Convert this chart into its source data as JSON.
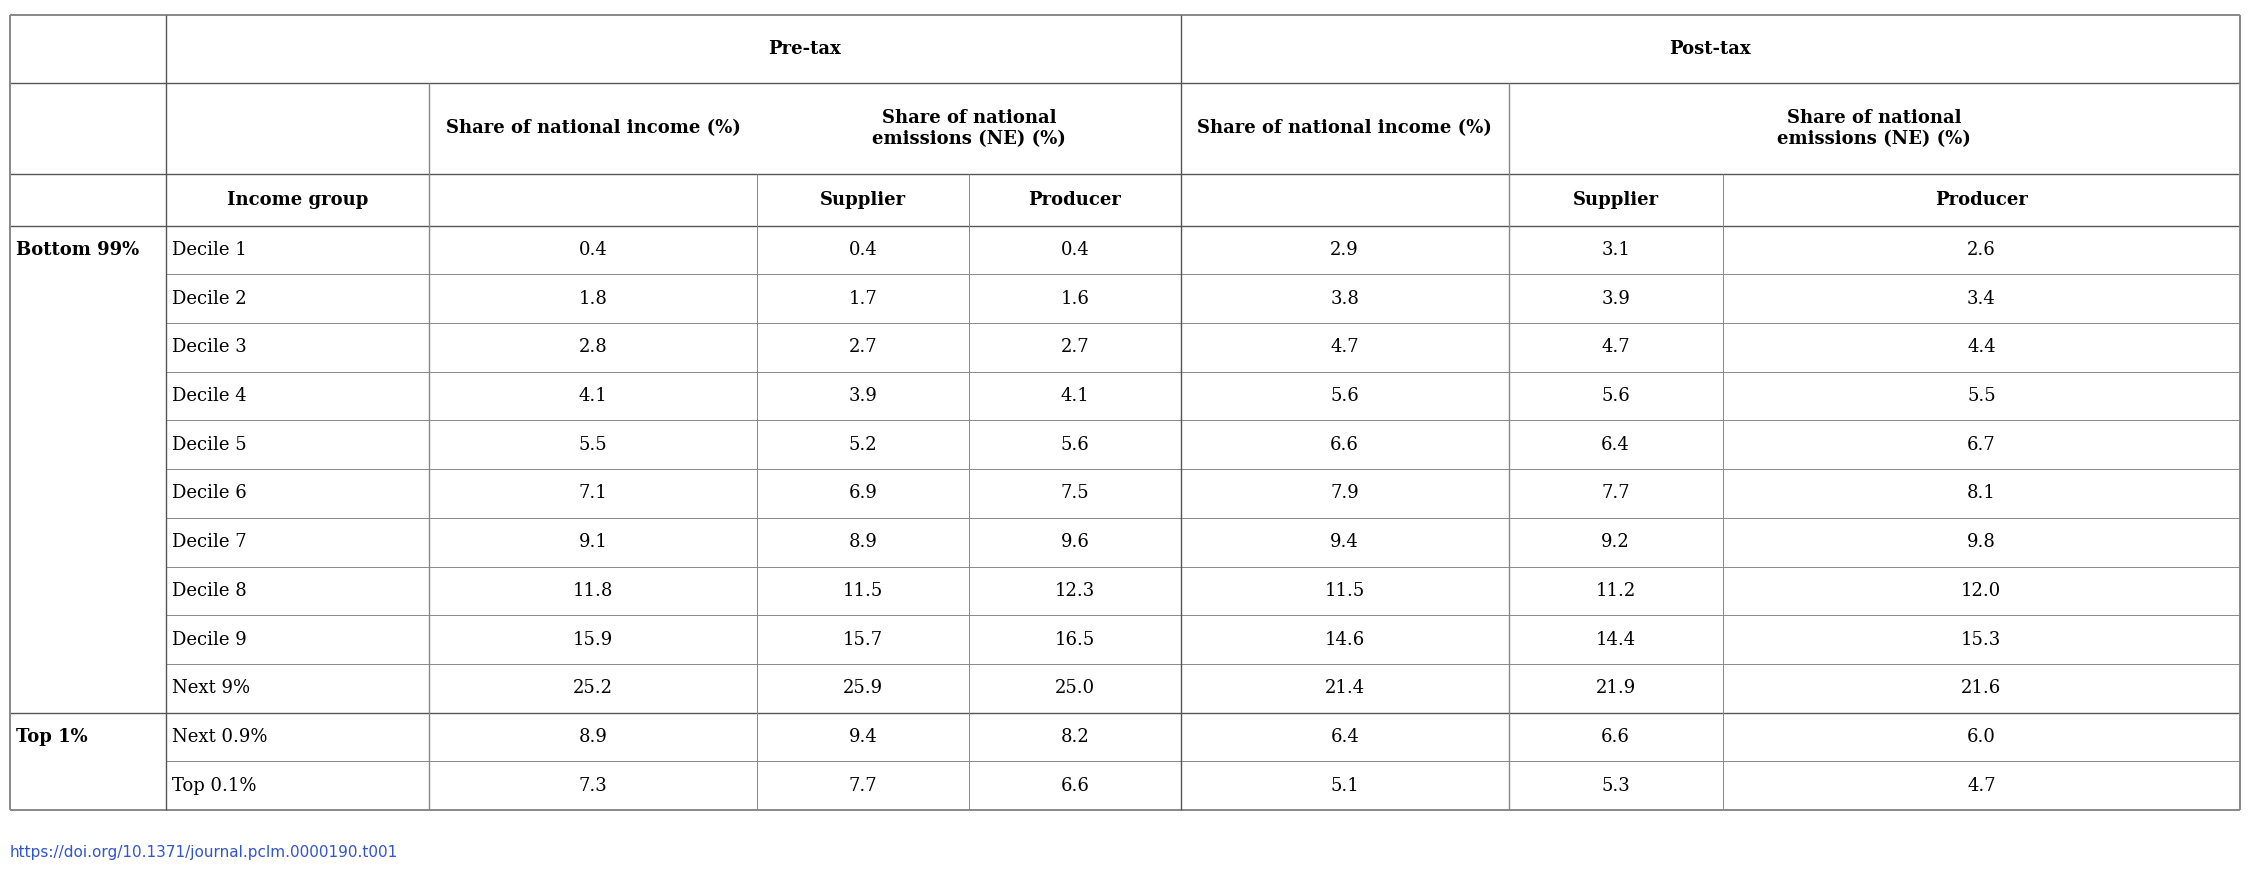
{
  "url": "https://doi.org/10.1371/journal.pclm.0000190.t001",
  "rows": [
    [
      "Bottom 99%",
      "Decile 1",
      "0.4",
      "0.4",
      "0.4",
      "2.9",
      "3.1",
      "2.6"
    ],
    [
      "",
      "Decile 2",
      "1.8",
      "1.7",
      "1.6",
      "3.8",
      "3.9",
      "3.4"
    ],
    [
      "",
      "Decile 3",
      "2.8",
      "2.7",
      "2.7",
      "4.7",
      "4.7",
      "4.4"
    ],
    [
      "",
      "Decile 4",
      "4.1",
      "3.9",
      "4.1",
      "5.6",
      "5.6",
      "5.5"
    ],
    [
      "",
      "Decile 5",
      "5.5",
      "5.2",
      "5.6",
      "6.6",
      "6.4",
      "6.7"
    ],
    [
      "",
      "Decile 6",
      "7.1",
      "6.9",
      "7.5",
      "7.9",
      "7.7",
      "8.1"
    ],
    [
      "",
      "Decile 7",
      "9.1",
      "8.9",
      "9.6",
      "9.4",
      "9.2",
      "9.8"
    ],
    [
      "",
      "Decile 8",
      "11.8",
      "11.5",
      "12.3",
      "11.5",
      "11.2",
      "12.0"
    ],
    [
      "",
      "Decile 9",
      "15.9",
      "15.7",
      "16.5",
      "14.6",
      "14.4",
      "15.3"
    ],
    [
      "",
      "Next 9%",
      "25.2",
      "25.9",
      "25.0",
      "21.4",
      "21.9",
      "21.6"
    ],
    [
      "Top 1%",
      "Next 0.9%",
      "8.9",
      "9.4",
      "8.2",
      "6.4",
      "6.6",
      "6.0"
    ],
    [
      "",
      "Top 0.1%",
      "7.3",
      "7.7",
      "6.6",
      "5.1",
      "5.3",
      "4.7"
    ]
  ],
  "background_color": "#ffffff",
  "line_color": "#888888",
  "bold_line_color": "#555555",
  "outer_line_color": "#888888",
  "font_size": 13,
  "header_font_size": 13,
  "url_font_size": 11,
  "url_color": "#3355cc"
}
